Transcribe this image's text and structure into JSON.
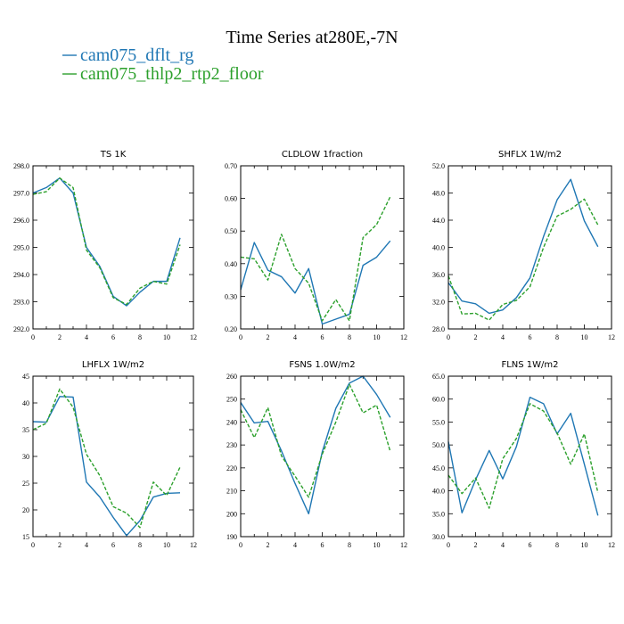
{
  "figure": {
    "title": "Time Series at280E,-7N"
  },
  "legend": [
    {
      "name": "cam075_dflt_rg",
      "color": "#1f77b4"
    },
    {
      "name": "cam075_thlp2_rtp2_floor",
      "color": "#2ca02c"
    }
  ],
  "chart_data": [
    {
      "type": "line",
      "title": "TS 1K",
      "x": [
        0,
        1,
        2,
        3,
        4,
        5,
        6,
        7,
        8,
        9,
        10,
        11
      ],
      "xlim": [
        0,
        12
      ],
      "xticks": [
        "0",
        "2",
        "4",
        "6",
        "8",
        "10",
        "12"
      ],
      "ylim": [
        292.0,
        298.0
      ],
      "yticks": [
        "292.0",
        "293.0",
        "294.0",
        "295.0",
        "296.0",
        "297.0",
        "298.0"
      ],
      "grid": false,
      "series": [
        {
          "name": "cam075_dflt_rg",
          "color": "#1f77b4",
          "dash": "",
          "values": [
            297.0,
            297.2,
            297.55,
            297.0,
            295.0,
            294.3,
            293.2,
            292.85,
            293.35,
            293.75,
            293.75,
            295.35
          ]
        },
        {
          "name": "cam075_thlp2_rtp2_floor",
          "color": "#2ca02c",
          "dash": "4 2",
          "values": [
            296.95,
            297.05,
            297.55,
            297.2,
            294.9,
            294.25,
            293.15,
            292.9,
            293.5,
            293.75,
            293.65,
            295.1
          ]
        }
      ]
    },
    {
      "type": "line",
      "title": "CLDLOW 1fraction",
      "x": [
        0,
        1,
        2,
        3,
        4,
        5,
        6,
        7,
        8,
        9,
        10,
        11
      ],
      "xlim": [
        0,
        12
      ],
      "xticks": [
        "0",
        "2",
        "4",
        "6",
        "8",
        "10",
        "12"
      ],
      "ylim": [
        0.2,
        0.7
      ],
      "yticks": [
        "0.20",
        "0.30",
        "0.40",
        "0.50",
        "0.60",
        "0.70"
      ],
      "grid": false,
      "series": [
        {
          "name": "cam075_dflt_rg",
          "color": "#1f77b4",
          "dash": "",
          "values": [
            0.32,
            0.465,
            0.38,
            0.36,
            0.31,
            0.385,
            0.215,
            0.23,
            0.245,
            0.395,
            0.42,
            0.47
          ]
        },
        {
          "name": "cam075_thlp2_rtp2_floor",
          "color": "#2ca02c",
          "dash": "4 2",
          "values": [
            0.42,
            0.415,
            0.35,
            0.49,
            0.385,
            0.34,
            0.225,
            0.29,
            0.225,
            0.48,
            0.52,
            0.605
          ]
        }
      ]
    },
    {
      "type": "line",
      "title": "SHFLX 1W/m2",
      "x": [
        0,
        1,
        2,
        3,
        4,
        5,
        6,
        7,
        8,
        9,
        10,
        11
      ],
      "xlim": [
        0,
        12
      ],
      "xticks": [
        "0",
        "2",
        "4",
        "6",
        "8",
        "10",
        "12"
      ],
      "ylim": [
        28.0,
        52.0
      ],
      "yticks": [
        "28.0",
        "32.0",
        "36.0",
        "40.0",
        "44.0",
        "48.0",
        "52.0"
      ],
      "grid": false,
      "series": [
        {
          "name": "cam075_dflt_rg",
          "color": "#1f77b4",
          "dash": "",
          "values": [
            34.8,
            32.1,
            31.7,
            30.3,
            30.8,
            32.6,
            35.5,
            41.6,
            47.0,
            50.0,
            43.9,
            40.1
          ]
        },
        {
          "name": "cam075_thlp2_rtp2_floor",
          "color": "#2ca02c",
          "dash": "4 2",
          "values": [
            35.8,
            30.2,
            30.3,
            29.3,
            31.6,
            32.2,
            34.2,
            40.0,
            44.6,
            45.6,
            47.1,
            43.3
          ]
        }
      ]
    },
    {
      "type": "line",
      "title": "LHFLX 1W/m2",
      "x": [
        0,
        1,
        2,
        3,
        4,
        5,
        6,
        7,
        8,
        9,
        10,
        11
      ],
      "xlim": [
        0,
        12
      ],
      "xticks": [
        "0",
        "2",
        "4",
        "6",
        "8",
        "10",
        "12"
      ],
      "ylim": [
        15,
        45
      ],
      "yticks": [
        "15",
        "20",
        "25",
        "30",
        "35",
        "40",
        "45"
      ],
      "grid": false,
      "series": [
        {
          "name": "cam075_dflt_rg",
          "color": "#1f77b4",
          "dash": "",
          "values": [
            36.5,
            36.4,
            41.2,
            41.1,
            25.2,
            22.4,
            18.6,
            15.2,
            18.0,
            22.4,
            23.1,
            23.2
          ]
        },
        {
          "name": "cam075_thlp2_rtp2_floor",
          "color": "#2ca02c",
          "dash": "4 2",
          "values": [
            35.0,
            36.2,
            42.6,
            39.2,
            30.4,
            26.4,
            20.6,
            19.4,
            16.7,
            25.2,
            22.7,
            28.0
          ]
        }
      ]
    },
    {
      "type": "line",
      "title": "FSNS 1.0W/m2",
      "x": [
        0,
        1,
        2,
        3,
        4,
        5,
        6,
        7,
        8,
        9,
        10,
        11
      ],
      "xlim": [
        0,
        12
      ],
      "xticks": [
        "0",
        "2",
        "4",
        "6",
        "8",
        "10",
        "12"
      ],
      "ylim": [
        190,
        260
      ],
      "yticks": [
        "190",
        "200",
        "210",
        "220",
        "230",
        "240",
        "250",
        "260"
      ],
      "grid": false,
      "series": [
        {
          "name": "cam075_dflt_rg",
          "color": "#1f77b4",
          "dash": "",
          "values": [
            248.5,
            239.6,
            240.3,
            227.4,
            213.2,
            200.0,
            227.0,
            246.0,
            257.0,
            260.0,
            252.0,
            242.0
          ]
        },
        {
          "name": "cam075_thlp2_rtp2_floor",
          "color": "#2ca02c",
          "dash": "4 2",
          "values": [
            245.4,
            233.2,
            246.3,
            225.2,
            216.4,
            207.2,
            226.0,
            240.0,
            256.4,
            244.0,
            247.4,
            227.2
          ]
        }
      ]
    },
    {
      "type": "line",
      "title": "FLNS 1W/m2",
      "x": [
        0,
        1,
        2,
        3,
        4,
        5,
        6,
        7,
        8,
        9,
        10,
        11
      ],
      "xlim": [
        0,
        12
      ],
      "xticks": [
        "0",
        "2",
        "4",
        "6",
        "8",
        "10",
        "12"
      ],
      "ylim": [
        30.0,
        65.0
      ],
      "yticks": [
        "30.0",
        "35.0",
        "40.0",
        "45.0",
        "50.0",
        "55.0",
        "60.0",
        "65.0"
      ],
      "grid": false,
      "series": [
        {
          "name": "cam075_dflt_rg",
          "color": "#1f77b4",
          "dash": "",
          "values": [
            50.7,
            35.2,
            42.4,
            48.8,
            42.6,
            49.6,
            60.4,
            59.0,
            52.4,
            56.9,
            45.8,
            34.6
          ]
        },
        {
          "name": "cam075_thlp2_rtp2_floor",
          "color": "#2ca02c",
          "dash": "4 2",
          "values": [
            43.4,
            39.4,
            42.8,
            36.2,
            47.0,
            51.4,
            59.0,
            57.4,
            52.6,
            45.8,
            52.4,
            39.6
          ]
        }
      ]
    }
  ]
}
